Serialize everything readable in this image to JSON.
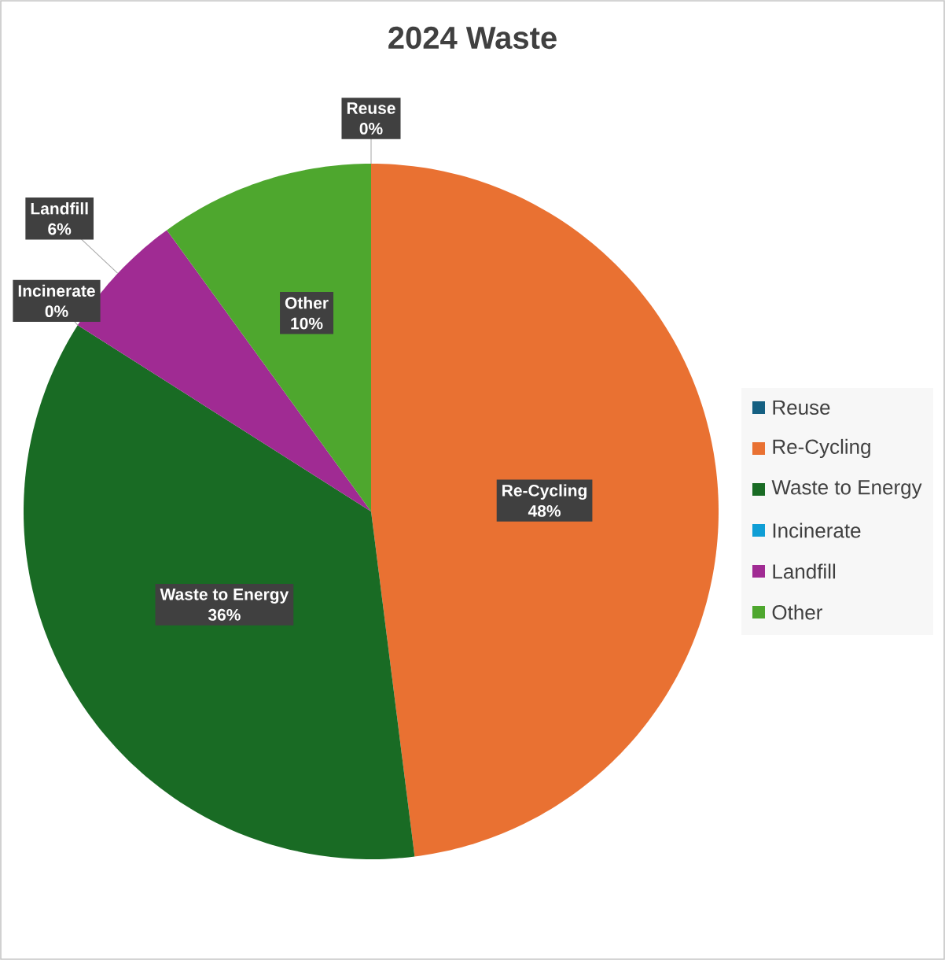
{
  "chart_data": {
    "type": "pie",
    "title": "2024 Waste",
    "categories": [
      "Reuse",
      "Re-Cycling",
      "Waste to Energy",
      "Incinerate",
      "Landfill",
      "Other"
    ],
    "values": [
      0,
      48,
      36,
      0,
      6,
      10
    ],
    "value_labels": [
      "0%",
      "48%",
      "36%",
      "0%",
      "6%",
      "10%"
    ],
    "colors": [
      "#156082",
      "#e97132",
      "#196b24",
      "#0f9ed5",
      "#a02b93",
      "#4ea72e"
    ],
    "legend": "right"
  }
}
